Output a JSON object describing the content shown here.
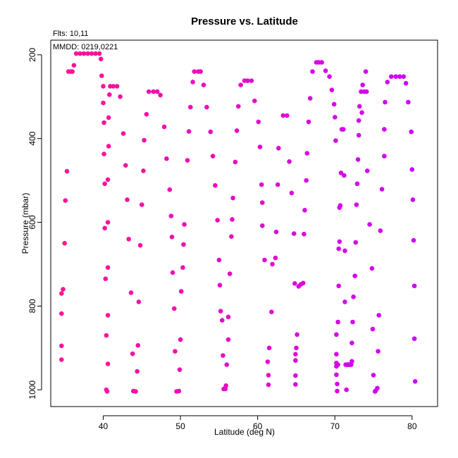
{
  "chart_data": {
    "type": "scatter",
    "title": "Pressure vs. Latitude",
    "xlabel": "Latitude (deg N)",
    "ylabel": "Pressure (mbar)",
    "annotations": [
      "Flts: 10,11",
      "MMDD: 0219,0221"
    ],
    "xlim": [
      33.2,
      83.3
    ],
    "ylim": [
      1040,
      165
    ],
    "y_reversed": true,
    "x_ticks": [
      40,
      50,
      60,
      70,
      80
    ],
    "y_ticks": [
      200,
      400,
      600,
      800,
      1000
    ],
    "grid": false,
    "color_range": [
      "#ff1493",
      "#cc00ff"
    ],
    "points": [
      [
        34.6,
        928
      ],
      [
        34.6,
        895
      ],
      [
        34.6,
        818
      ],
      [
        34.6,
        770
      ],
      [
        34.8,
        760
      ],
      [
        35.0,
        650
      ],
      [
        35.1,
        548
      ],
      [
        35.3,
        478
      ],
      [
        35.5,
        240
      ],
      [
        35.8,
        240
      ],
      [
        36.0,
        240
      ],
      [
        36.2,
        225
      ],
      [
        36.5,
        197
      ],
      [
        37.0,
        197
      ],
      [
        37.5,
        197
      ],
      [
        38.0,
        197
      ],
      [
        38.5,
        197
      ],
      [
        39.0,
        197
      ],
      [
        39.5,
        197
      ],
      [
        39.7,
        210
      ],
      [
        39.8,
        250
      ],
      [
        40.0,
        275
      ],
      [
        40.0,
        315
      ],
      [
        40.1,
        362
      ],
      [
        40.1,
        437
      ],
      [
        40.2,
        508
      ],
      [
        40.2,
        614
      ],
      [
        40.3,
        735
      ],
      [
        40.4,
        870
      ],
      [
        40.4,
        1000
      ],
      [
        40.5,
        1004
      ],
      [
        40.6,
        938
      ],
      [
        40.6,
        822
      ],
      [
        40.6,
        708
      ],
      [
        40.6,
        600
      ],
      [
        40.6,
        498
      ],
      [
        40.7,
        418
      ],
      [
        40.7,
        350
      ],
      [
        40.8,
        295
      ],
      [
        40.9,
        275
      ],
      [
        41.3,
        275
      ],
      [
        41.8,
        275
      ],
      [
        42.2,
        300
      ],
      [
        42.6,
        388
      ],
      [
        42.9,
        464
      ],
      [
        43.1,
        546
      ],
      [
        43.3,
        640
      ],
      [
        43.6,
        768
      ],
      [
        43.8,
        914
      ],
      [
        43.9,
        1003
      ],
      [
        44.2,
        1004
      ],
      [
        44.4,
        956
      ],
      [
        44.5,
        894
      ],
      [
        44.6,
        790
      ],
      [
        44.8,
        655
      ],
      [
        45.0,
        558
      ],
      [
        45.2,
        477
      ],
      [
        45.3,
        404
      ],
      [
        45.6,
        342
      ],
      [
        45.9,
        288
      ],
      [
        46.5,
        288
      ],
      [
        47.0,
        288
      ],
      [
        47.4,
        296
      ],
      [
        47.9,
        372
      ],
      [
        48.2,
        448
      ],
      [
        48.6,
        522
      ],
      [
        48.8,
        585
      ],
      [
        48.9,
        635
      ],
      [
        49.0,
        720
      ],
      [
        49.2,
        806
      ],
      [
        49.3,
        908
      ],
      [
        49.5,
        1004
      ],
      [
        49.8,
        1003
      ],
      [
        49.9,
        952
      ],
      [
        50.0,
        880
      ],
      [
        50.1,
        765
      ],
      [
        50.3,
        708
      ],
      [
        50.4,
        653
      ],
      [
        50.5,
        605
      ],
      [
        50.9,
        452
      ],
      [
        51.1,
        383
      ],
      [
        51.3,
        325
      ],
      [
        51.6,
        265
      ],
      [
        51.8,
        240
      ],
      [
        52.3,
        240
      ],
      [
        52.6,
        240
      ],
      [
        53.0,
        272
      ],
      [
        53.4,
        325
      ],
      [
        53.9,
        384
      ],
      [
        54.2,
        442
      ],
      [
        54.5,
        512
      ],
      [
        54.8,
        595
      ],
      [
        55.0,
        690
      ],
      [
        55.1,
        750
      ],
      [
        55.2,
        812
      ],
      [
        55.4,
        834
      ],
      [
        55.5,
        918
      ],
      [
        55.6,
        998
      ],
      [
        55.8,
        998
      ],
      [
        55.9,
        990
      ],
      [
        56.0,
        940
      ],
      [
        56.2,
        880
      ],
      [
        56.2,
        826
      ],
      [
        56.4,
        723
      ],
      [
        56.6,
        634
      ],
      [
        56.7,
        593
      ],
      [
        56.8,
        542
      ],
      [
        57.1,
        456
      ],
      [
        57.3,
        381
      ],
      [
        57.5,
        323
      ],
      [
        57.8,
        272
      ],
      [
        58.3,
        262
      ],
      [
        58.7,
        262
      ],
      [
        59.2,
        262
      ],
      [
        59.6,
        310
      ],
      [
        60.1,
        360
      ],
      [
        60.3,
        420
      ],
      [
        60.5,
        510
      ],
      [
        60.6,
        553
      ],
      [
        60.6,
        608
      ],
      [
        60.9,
        690
      ],
      [
        61.3,
        933
      ],
      [
        61.4,
        965
      ],
      [
        61.4,
        988
      ],
      [
        61.5,
        900
      ],
      [
        61.8,
        814
      ],
      [
        61.9,
        700
      ],
      [
        62.3,
        685
      ],
      [
        62.4,
        623
      ],
      [
        62.6,
        510
      ],
      [
        62.7,
        423
      ],
      [
        63.3,
        345
      ],
      [
        63.8,
        345
      ],
      [
        64.1,
        455
      ],
      [
        64.4,
        530
      ],
      [
        64.7,
        627
      ],
      [
        64.8,
        746
      ],
      [
        64.9,
        915
      ],
      [
        64.9,
        930
      ],
      [
        64.9,
        966
      ],
      [
        64.9,
        987
      ],
      [
        65.0,
        900
      ],
      [
        65.1,
        868
      ],
      [
        65.3,
        753
      ],
      [
        65.6,
        748
      ],
      [
        65.9,
        745
      ],
      [
        66.0,
        628
      ],
      [
        66.1,
        571
      ],
      [
        66.3,
        500
      ],
      [
        66.4,
        435
      ],
      [
        66.6,
        360
      ],
      [
        66.8,
        304
      ],
      [
        67.1,
        240
      ],
      [
        67.6,
        218
      ],
      [
        67.9,
        218
      ],
      [
        68.3,
        218
      ],
      [
        68.8,
        238
      ],
      [
        69.3,
        252
      ],
      [
        69.6,
        284
      ],
      [
        69.9,
        318
      ],
      [
        70.0,
        349
      ],
      [
        70.1,
        405
      ],
      [
        70.2,
        868
      ],
      [
        70.2,
        915
      ],
      [
        70.2,
        936
      ],
      [
        70.2,
        944
      ],
      [
        70.2,
        964
      ],
      [
        70.3,
        986
      ],
      [
        70.3,
        1003
      ],
      [
        70.4,
        940
      ],
      [
        70.4,
        838
      ],
      [
        70.5,
        752
      ],
      [
        70.5,
        663
      ],
      [
        70.6,
        646
      ],
      [
        70.6,
        565
      ],
      [
        70.7,
        560
      ],
      [
        70.8,
        482
      ],
      [
        70.9,
        378
      ],
      [
        71.1,
        378
      ],
      [
        71.2,
        488
      ],
      [
        71.3,
        668
      ],
      [
        71.3,
        790
      ],
      [
        71.4,
        940
      ],
      [
        71.5,
        1000
      ],
      [
        71.6,
        940
      ],
      [
        71.6,
        940
      ],
      [
        71.7,
        940
      ],
      [
        71.8,
        940
      ],
      [
        71.9,
        940
      ],
      [
        72.1,
        940
      ],
      [
        72.2,
        932
      ],
      [
        72.2,
        888
      ],
      [
        72.3,
        838
      ],
      [
        72.4,
        778
      ],
      [
        72.6,
        728
      ],
      [
        72.7,
        648
      ],
      [
        72.8,
        558
      ],
      [
        72.9,
        508
      ],
      [
        73.0,
        450
      ],
      [
        73.1,
        392
      ],
      [
        73.1,
        357
      ],
      [
        73.2,
        323
      ],
      [
        73.4,
        288
      ],
      [
        73.5,
        338
      ],
      [
        73.6,
        272
      ],
      [
        73.8,
        288
      ],
      [
        74.0,
        240
      ],
      [
        74.1,
        288
      ],
      [
        74.2,
        477
      ],
      [
        74.5,
        605
      ],
      [
        74.8,
        710
      ],
      [
        74.9,
        855
      ],
      [
        75.0,
        965
      ],
      [
        75.2,
        1004
      ],
      [
        75.3,
        1002
      ],
      [
        75.5,
        996
      ],
      [
        75.6,
        908
      ],
      [
        75.7,
        822
      ],
      [
        75.9,
        620
      ],
      [
        76.1,
        521
      ],
      [
        76.4,
        442
      ],
      [
        76.4,
        378
      ],
      [
        76.5,
        313
      ],
      [
        76.8,
        265
      ],
      [
        77.3,
        252
      ],
      [
        77.9,
        252
      ],
      [
        78.4,
        252
      ],
      [
        78.9,
        252
      ],
      [
        79.2,
        268
      ],
      [
        79.5,
        313
      ],
      [
        79.9,
        384
      ],
      [
        80.0,
        474
      ],
      [
        80.1,
        546
      ],
      [
        80.2,
        643
      ],
      [
        80.3,
        752
      ],
      [
        80.3,
        878
      ],
      [
        80.4,
        980
      ]
    ]
  }
}
